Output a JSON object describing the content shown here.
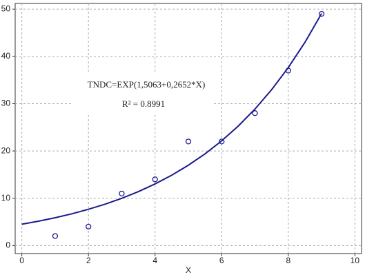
{
  "chart_data": {
    "type": "scatter",
    "x_label": "X",
    "annotations": [
      "TNDC=EXP(1,5063+0,2652*X)",
      "R² = 0.8991"
    ],
    "xlim": [
      -0.2,
      10.2
    ],
    "ylim": [
      -1.7,
      51.2
    ],
    "xticks": [
      0,
      2,
      4,
      6,
      8,
      10
    ],
    "yticks": [
      0,
      10,
      20,
      30,
      40,
      50
    ],
    "grid": true,
    "series": [
      {
        "type": "scatter",
        "color": "#1a1a8c",
        "x": [
          1,
          2,
          3,
          4,
          5,
          6,
          7,
          8,
          9
        ],
        "values": [
          2,
          4,
          11,
          14,
          22,
          22,
          28,
          37,
          49
        ]
      },
      {
        "type": "line",
        "color": "#1a1a8c",
        "x": [
          0,
          0.5,
          1,
          1.5,
          2,
          2.5,
          3,
          3.5,
          4,
          4.5,
          5,
          5.5,
          6,
          6.5,
          7,
          7.5,
          8,
          8.5,
          9
        ],
        "values": [
          4.51,
          5.15,
          5.88,
          6.71,
          7.67,
          8.75,
          9.99,
          11.41,
          13.03,
          14.87,
          16.99,
          19.39,
          22.14,
          25.28,
          28.87,
          32.96,
          37.64,
          42.97,
          49.07
        ]
      }
    ]
  }
}
